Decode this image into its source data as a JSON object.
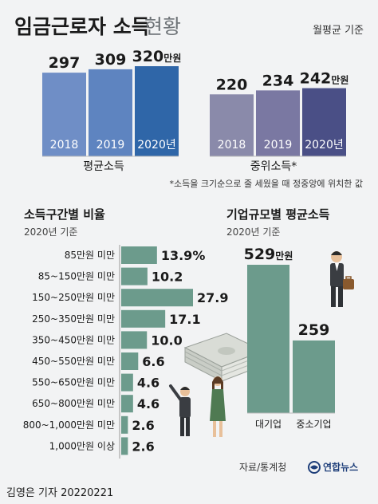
{
  "header": {
    "title_bold": "임금근로자 소득",
    "title_light": "현황",
    "unit": "월평균 기준"
  },
  "chart_data": [
    {
      "type": "bar",
      "group_label": "평균소득",
      "categories": [
        "2018",
        "2019",
        "2020년"
      ],
      "values": [
        297,
        309,
        320
      ],
      "value_labels": [
        "297",
        "309",
        "320"
      ],
      "last_value_suffix": "만원",
      "colors": [
        "#6f8ec6",
        "#5e84c0",
        "#2f66a8"
      ]
    },
    {
      "type": "bar",
      "group_label": "중위소득*",
      "categories": [
        "2018",
        "2019",
        "2020년"
      ],
      "values": [
        220,
        234,
        242
      ],
      "value_labels": [
        "220",
        "234",
        "242"
      ],
      "last_value_suffix": "만원",
      "colors": [
        "#8a8aaa",
        "#7a78a2",
        "#4a4f86"
      ]
    },
    {
      "type": "bar",
      "orientation": "horizontal",
      "title": "소득구간별 비율",
      "subtitle": "2020년 기준",
      "categories": [
        "85만원 미만",
        "85~150만원 미만",
        "150~250만원 미만",
        "250~350만원 미만",
        "350~450만원 미만",
        "450~550만원 미만",
        "550~650만원 미만",
        "650~800만원 미만",
        "800~1,000만원 미만",
        "1,000만원 이상"
      ],
      "values": [
        13.9,
        10.2,
        27.9,
        17.1,
        10.0,
        6.6,
        4.6,
        4.6,
        2.6,
        2.6
      ],
      "value_labels": [
        "13.9",
        "10.2",
        "27.9",
        "17.1",
        "10.0",
        "6.6",
        "4.6",
        "4.6",
        "2.6",
        "2.6"
      ],
      "first_value_suffix": "%",
      "color": "#6c9b8c"
    },
    {
      "type": "bar",
      "title": "기업규모별 평균소득",
      "subtitle": "2020년 기준",
      "categories": [
        "대기업",
        "중소기업"
      ],
      "values": [
        529,
        259
      ],
      "value_labels": [
        "529",
        "259"
      ],
      "first_value_suffix": "만원",
      "color": "#6c9b8c"
    }
  ],
  "note": "*소득을 크기순으로 줄 세웠을 때 정중앙에 위치한 값",
  "footer": {
    "source": "자료/통계청",
    "byline": "김영은 기자  20220221",
    "logo_text": "연합뉴스"
  },
  "colors": {
    "background": "#f2f3f4",
    "accent_green": "#6c9b8c"
  }
}
